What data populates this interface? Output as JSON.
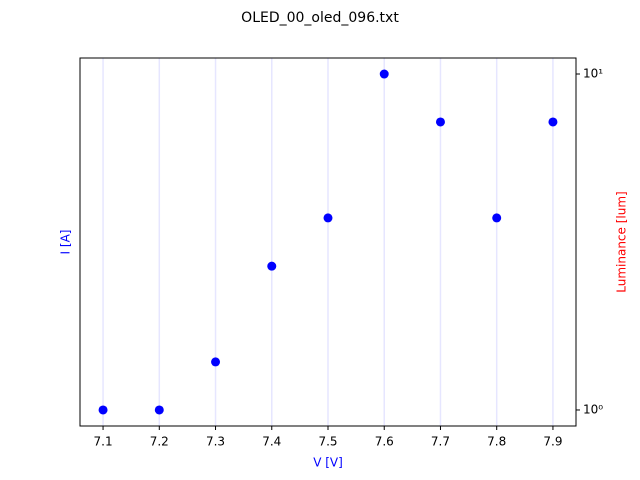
{
  "chart_data": {
    "type": "scatter",
    "title": "OLED_00_oled_096.txt",
    "xlabel": "V [V]",
    "ylabel": "I [A]",
    "y2label": "Luminance [lum]",
    "xlabel_color": "#0000ff",
    "ylabel_color": "#0000ff",
    "y2label_color": "#ff0000",
    "x": [
      7.1,
      7.2,
      7.3,
      7.4,
      7.5,
      7.6,
      7.7,
      7.8,
      7.9
    ],
    "series": [
      {
        "color": "#0000ff",
        "axis": "y2",
        "values": [
          1,
          1,
          1.39,
          2.68,
          3.73,
          10,
          7.2,
          3.73,
          7.2
        ]
      }
    ],
    "xlim": [
      7.059,
      7.941
    ],
    "xticks": [
      7.1,
      7.2,
      7.3,
      7.4,
      7.5,
      7.6,
      7.7,
      7.8,
      7.9
    ],
    "y2lim": [
      0.896,
      11.16
    ],
    "y2log": true,
    "y2ticks": [
      {
        "value": 1,
        "label": "10⁰"
      },
      {
        "value": 10,
        "label": "10¹"
      }
    ],
    "xgrid": true,
    "grid_color": "#e6e6ff"
  }
}
